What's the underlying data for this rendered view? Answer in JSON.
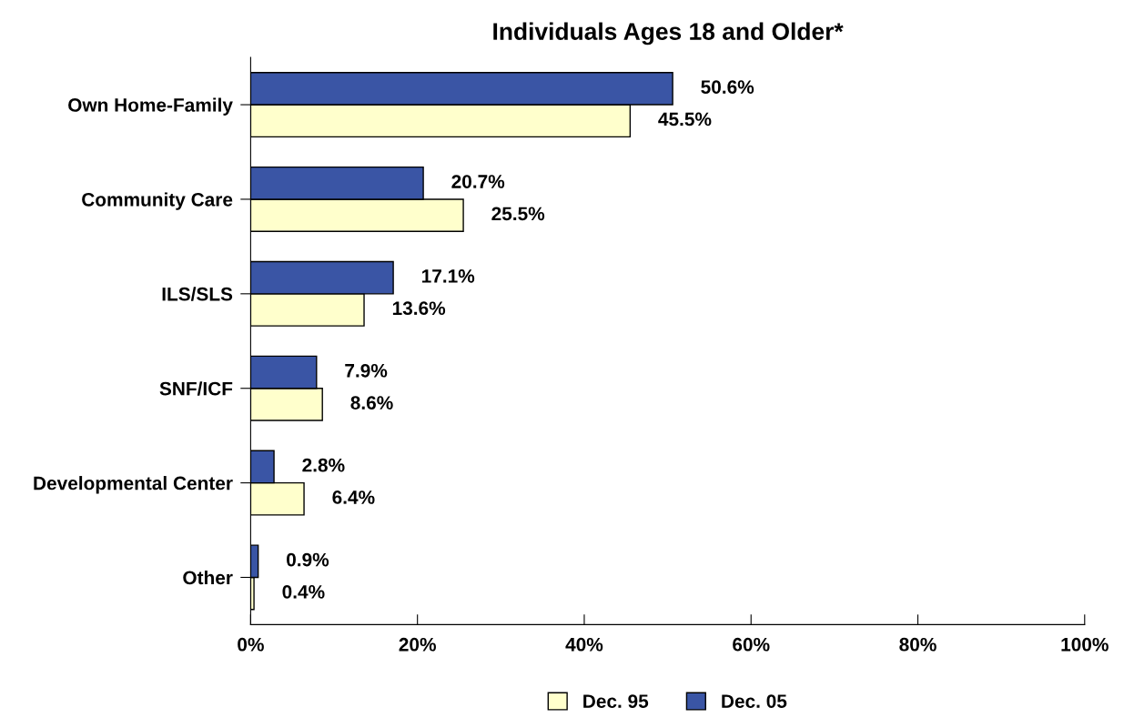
{
  "chart_data": {
    "type": "bar",
    "orientation": "horizontal",
    "title": "Individuals Ages 18 and Older*",
    "categories": [
      "Own Home-Family",
      "Community Care",
      "ILS/SLS",
      "SNF/ICF",
      "Developmental Center",
      "Other"
    ],
    "series": [
      {
        "name": "Dec. 95",
        "color": "#ffffcc",
        "values": [
          45.5,
          25.5,
          13.6,
          8.6,
          6.4,
          0.4
        ],
        "value_labels": [
          "45.5%",
          "25.5%",
          "13.6%",
          "8.6%",
          "6.4%",
          "0.4%"
        ]
      },
      {
        "name": "Dec. 05",
        "color": "#3a55a5",
        "values": [
          50.6,
          20.7,
          17.1,
          7.9,
          2.8,
          0.9
        ],
        "value_labels": [
          "50.6%",
          "20.7%",
          "17.1%",
          "7.9%",
          "2.8%",
          "0.9%"
        ]
      }
    ],
    "xlim": [
      0,
      100
    ],
    "xticks": [
      {
        "value": 0,
        "label": "0%"
      },
      {
        "value": 20,
        "label": "20%"
      },
      {
        "value": 40,
        "label": "40%"
      },
      {
        "value": 60,
        "label": "60%"
      },
      {
        "value": 80,
        "label": "80%"
      },
      {
        "value": 100,
        "label": "100%"
      }
    ],
    "grid": false,
    "legend": "bottom"
  }
}
